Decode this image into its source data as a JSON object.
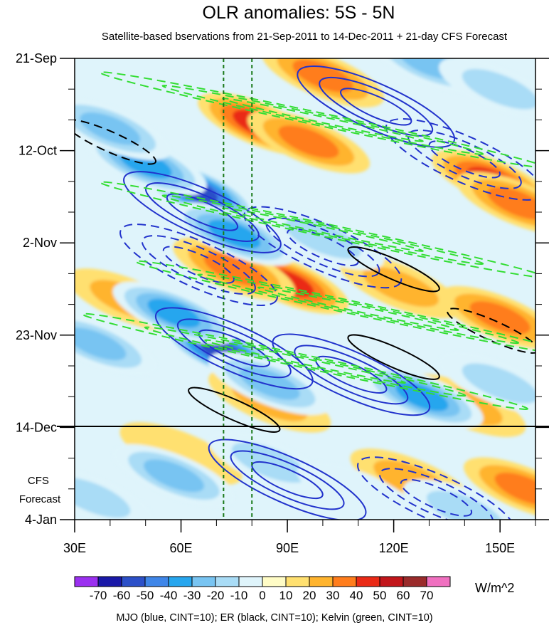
{
  "chart_data": {
    "type": "heatmap",
    "title": "OLR anomalies: 5S - 5N",
    "subtitle": "Satellite-based bservations from 21-Sep-2011 to 14-Dec-2011 + 21-day CFS Forecast",
    "xlabel": "",
    "ylabel": "",
    "x_range": [
      30,
      160
    ],
    "x_ticks": [
      30,
      60,
      90,
      120,
      150
    ],
    "x_tick_labels": [
      "30E",
      "60E",
      "90E",
      "120E",
      "150E"
    ],
    "y_range": [
      "2011-09-21",
      "2012-01-04"
    ],
    "y_ticks": [
      "2011-09-21",
      "2011-10-12",
      "2011-11-02",
      "2011-11-23",
      "2011-12-14",
      "2012-01-04"
    ],
    "y_tick_labels": [
      "21-Sep",
      "12-Oct",
      "2-Nov",
      "23-Nov",
      "14-Dec",
      "4-Jan"
    ],
    "observation_end": "2011-12-14",
    "forecast_label": "CFS\nForecast",
    "reference_lines_lon": [
      72,
      80
    ],
    "colorbar": {
      "levels": [
        -70,
        -60,
        -50,
        -40,
        -30,
        -20,
        -10,
        0,
        10,
        20,
        30,
        40,
        50,
        60,
        70
      ],
      "tick_labels": [
        "-70",
        "-60",
        "-50",
        "-40",
        "-30",
        "-20",
        "-10",
        "0",
        "10",
        "20",
        "30",
        "40",
        "50",
        "60",
        "70"
      ],
      "colors": [
        "#9b30f0",
        "#1a19a8",
        "#2c50c8",
        "#3f86e8",
        "#27a6ee",
        "#78c4f2",
        "#a9dcf6",
        "#dff4fb",
        "#fffcc6",
        "#ffe070",
        "#ffb42e",
        "#ff7d1c",
        "#ea2a16",
        "#c2161b",
        "#9a2b2b",
        "#f070c0"
      ],
      "units": "W/m^2"
    },
    "caption": "MJO (blue, CINT=10); ER (black, CINT=10); Kelvin (green, CINT=10)",
    "series": [
      {
        "name": "MJO",
        "color": "#2233cc",
        "values": [
          {
            "lon": 66,
            "date": "2011-10-26",
            "val": -40
          },
          {
            "lon": 75,
            "date": "2011-11-26",
            "val": -40
          },
          {
            "lon": 108,
            "date": "2011-12-02",
            "val": -20
          },
          {
            "lon": 100,
            "date": "2011-11-03",
            "val": 20
          },
          {
            "lon": 65,
            "date": "2011-11-07",
            "val": 20
          },
          {
            "lon": 115,
            "date": "2011-10-02",
            "val": -20
          },
          {
            "lon": 140,
            "date": "2011-10-14",
            "val": 20
          },
          {
            "lon": 90,
            "date": "2011-12-26",
            "val": -20
          },
          {
            "lon": 132,
            "date": "2011-12-30",
            "val": 20
          }
        ]
      },
      {
        "name": "ER",
        "color": "#000000",
        "values": [
          {
            "lon": 40,
            "date": "2011-10-10",
            "val": 10
          },
          {
            "lon": 75,
            "date": "2011-12-10",
            "val": -10
          },
          {
            "lon": 120,
            "date": "2011-11-08",
            "val": -10
          },
          {
            "lon": 120,
            "date": "2011-11-28",
            "val": -10
          },
          {
            "lon": 148,
            "date": "2011-11-22",
            "val": 10
          }
        ]
      },
      {
        "name": "Kelvin",
        "color": "#33dd33",
        "values": [
          {
            "lon": 100,
            "date": "2011-10-05",
            "val": 10
          },
          {
            "lon": 100,
            "date": "2011-10-30",
            "val": 10
          },
          {
            "lon": 110,
            "date": "2011-11-17",
            "val": 10
          },
          {
            "lon": 95,
            "date": "2011-11-29",
            "val": 10
          }
        ]
      }
    ],
    "anomaly_blobs": [
      {
        "lon": 82,
        "date": "2011-10-06",
        "val": 45
      },
      {
        "lon": 96,
        "date": "2011-10-10",
        "val": 35
      },
      {
        "lon": 148,
        "date": "2011-10-19",
        "val": 45
      },
      {
        "lon": 155,
        "date": "2011-10-24",
        "val": 35
      },
      {
        "lon": 90,
        "date": "2011-11-11",
        "val": 45
      },
      {
        "lon": 75,
        "date": "2011-11-08",
        "val": 30
      },
      {
        "lon": 122,
        "date": "2011-11-12",
        "val": 25
      },
      {
        "lon": 45,
        "date": "2011-11-15",
        "val": 20
      },
      {
        "lon": 150,
        "date": "2011-11-19",
        "val": 30
      },
      {
        "lon": 140,
        "date": "2011-12-09",
        "val": 25
      },
      {
        "lon": 85,
        "date": "2011-12-08",
        "val": 20
      },
      {
        "lon": 157,
        "date": "2011-12-28",
        "val": 30
      },
      {
        "lon": 125,
        "date": "2011-12-26",
        "val": 20
      },
      {
        "lon": 60,
        "date": "2011-12-20",
        "val": 15
      },
      {
        "lon": 100,
        "date": "2011-09-25",
        "val": 30
      },
      {
        "lon": 64,
        "date": "2011-10-21",
        "val": -60
      },
      {
        "lon": 50,
        "date": "2011-10-15",
        "val": -40
      },
      {
        "lon": 75,
        "date": "2011-10-31",
        "val": -45
      },
      {
        "lon": 40,
        "date": "2011-10-07",
        "val": -30
      },
      {
        "lon": 100,
        "date": "2011-11-01",
        "val": -25
      },
      {
        "lon": 72,
        "date": "2011-11-27",
        "val": -65
      },
      {
        "lon": 58,
        "date": "2011-11-18",
        "val": -40
      },
      {
        "lon": 36,
        "date": "2011-11-25",
        "val": -35
      },
      {
        "lon": 85,
        "date": "2011-12-04",
        "val": -30
      },
      {
        "lon": 128,
        "date": "2011-12-07",
        "val": -45
      },
      {
        "lon": 150,
        "date": "2011-12-04",
        "val": -25
      },
      {
        "lon": 130,
        "date": "2011-09-22",
        "val": -30
      },
      {
        "lon": 150,
        "date": "2011-09-28",
        "val": -25
      },
      {
        "lon": 58,
        "date": "2011-12-25",
        "val": -30
      },
      {
        "lon": 85,
        "date": "2011-12-22",
        "val": -20
      },
      {
        "lon": 110,
        "date": "2011-12-29",
        "val": -15
      },
      {
        "lon": 140,
        "date": "2012-01-02",
        "val": -20
      },
      {
        "lon": 35,
        "date": "2011-12-30",
        "val": -20
      }
    ]
  }
}
